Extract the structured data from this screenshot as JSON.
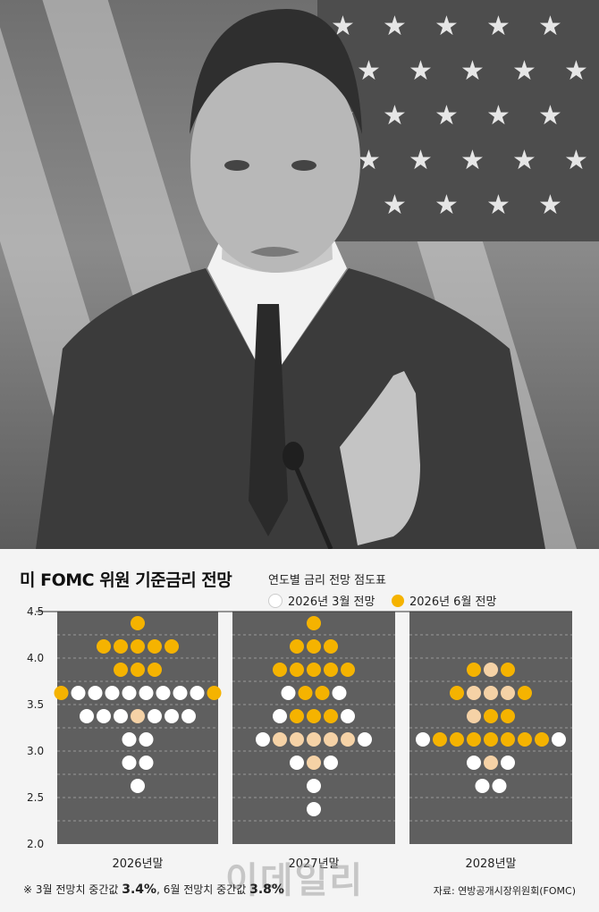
{
  "photo": {
    "description_icon": "person-photo-icon"
  },
  "chart_title": "미 FOMC 위원 기준금리 전망",
  "chart_subtitle": "연도별 금리 전망 점도표",
  "legend": [
    {
      "label": "2026년 3월 전망",
      "color": "#ffffff"
    },
    {
      "label": "2026년 6월 전망",
      "color": "#f5b300"
    }
  ],
  "note": {
    "prefix": "※ 3월 전망치 중간값",
    "march_median": "3.4%",
    "middle": ", 6월 전망치 중간값",
    "june_median": "3.8%"
  },
  "source": "자료: 연방공개시장위원회(FOMC)",
  "watermark": "이데일리",
  "colors": {
    "march": "#ffffff",
    "june": "#f5b300",
    "overlap": "#f5d2a6",
    "panel": "#5f5f5f"
  },
  "chart_data": {
    "type": "scatter",
    "title": "미 FOMC 위원 기준금리 전망",
    "subtitle": "연도별 금리 전망 점도표",
    "categories": [
      "2026년말",
      "2027년말",
      "2028년말"
    ],
    "y_ticks": [
      "4.5",
      "4.0",
      "3.5",
      "3.0",
      "2.5",
      "2.0"
    ],
    "ylim": [
      2.0,
      4.5
    ],
    "grid": true,
    "series": [
      {
        "name": "2026년 3월 전망",
        "values": [
          {
            "year": "2026년말",
            "dots": {
              "3.625": 8,
              "3.375": 8,
              "3.125": 2,
              "2.875": 2,
              "2.625": 1
            }
          },
          {
            "year": "2027년말",
            "dots": {
              "3.625": 3,
              "3.375": 5,
              "3.125": 6,
              "2.875": 3,
              "2.625": 1,
              "2.375": 1
            }
          },
          {
            "year": "2028년말",
            "dots": {
              "3.875": 1,
              "3.625": 3,
              "3.375": 1,
              "3.125": 7,
              "2.875": 3,
              "2.625": 2
            }
          }
        ]
      },
      {
        "name": "2026년 6월 전망",
        "values": [
          {
            "year": "2026년말",
            "dots": {
              "4.375": 1,
              "4.125": 5,
              "3.875": 3,
              "3.625": 8,
              "3.375": 1
            }
          },
          {
            "year": "2027년말",
            "dots": {
              "4.375": 1,
              "4.125": 3,
              "3.875": 5,
              "3.625": 3,
              "3.375": 4,
              "3.125": 4,
              "2.875": 1
            }
          },
          {
            "year": "2028년말",
            "dots": {
              "3.875": 3,
              "3.625": 4,
              "3.375": 2,
              "3.125": 7,
              "2.875": 2
            }
          }
        ]
      }
    ],
    "rows": [
      {
        "year": "2026년말",
        "y": 4.375,
        "dots": [
          "J"
        ]
      },
      {
        "year": "2026년말",
        "y": 4.125,
        "dots": [
          "J",
          "J",
          "J",
          "J",
          "J"
        ]
      },
      {
        "year": "2026년말",
        "y": 3.875,
        "dots": [
          "J",
          "J",
          "J"
        ]
      },
      {
        "year": "2026년말",
        "y": 3.625,
        "dots": [
          "J",
          "W",
          "W",
          "W",
          "W",
          "W",
          "W",
          "W",
          "W",
          "J"
        ]
      },
      {
        "year": "2026년말",
        "y": 3.375,
        "dots": [
          "W",
          "W",
          "W",
          "B",
          "W",
          "W",
          "W"
        ]
      },
      {
        "year": "2026년말",
        "y": 3.125,
        "dots": [
          "W",
          "W"
        ]
      },
      {
        "year": "2026년말",
        "y": 2.875,
        "dots": [
          "W",
          "W"
        ]
      },
      {
        "year": "2026년말",
        "y": 2.625,
        "dots": [
          "W"
        ]
      },
      {
        "year": "2027년말",
        "y": 4.375,
        "dots": [
          "J"
        ]
      },
      {
        "year": "2027년말",
        "y": 4.125,
        "dots": [
          "J",
          "J",
          "J"
        ]
      },
      {
        "year": "2027년말",
        "y": 3.875,
        "dots": [
          "J",
          "J",
          "J",
          "J",
          "J"
        ]
      },
      {
        "year": "2027년말",
        "y": 3.625,
        "dots": [
          "W",
          "J",
          "J",
          "W"
        ]
      },
      {
        "year": "2027년말",
        "y": 3.375,
        "dots": [
          "W",
          "J",
          "J",
          "J",
          "W"
        ]
      },
      {
        "year": "2027년말",
        "y": 3.125,
        "dots": [
          "W",
          "B",
          "B",
          "B",
          "B",
          "B",
          "W"
        ]
      },
      {
        "year": "2027년말",
        "y": 2.875,
        "dots": [
          "W",
          "B",
          "W"
        ]
      },
      {
        "year": "2027년말",
        "y": 2.625,
        "dots": [
          "W"
        ]
      },
      {
        "year": "2027년말",
        "y": 2.375,
        "dots": [
          "W"
        ]
      },
      {
        "year": "2028년말",
        "y": 3.875,
        "dots": [
          "J",
          "B",
          "J"
        ]
      },
      {
        "year": "2028년말",
        "y": 3.625,
        "dots": [
          "J",
          "B",
          "B",
          "B",
          "J"
        ]
      },
      {
        "year": "2028년말",
        "y": 3.375,
        "dots": [
          "B",
          "J",
          "J"
        ]
      },
      {
        "year": "2028년말",
        "y": 3.125,
        "dots": [
          "W",
          "J",
          "J",
          "J",
          "J",
          "J",
          "J",
          "J",
          "W"
        ]
      },
      {
        "year": "2028년말",
        "y": 2.875,
        "dots": [
          "W",
          "B",
          "W"
        ]
      },
      {
        "year": "2028년말",
        "y": 2.625,
        "dots": [
          "W",
          "W"
        ]
      }
    ]
  }
}
